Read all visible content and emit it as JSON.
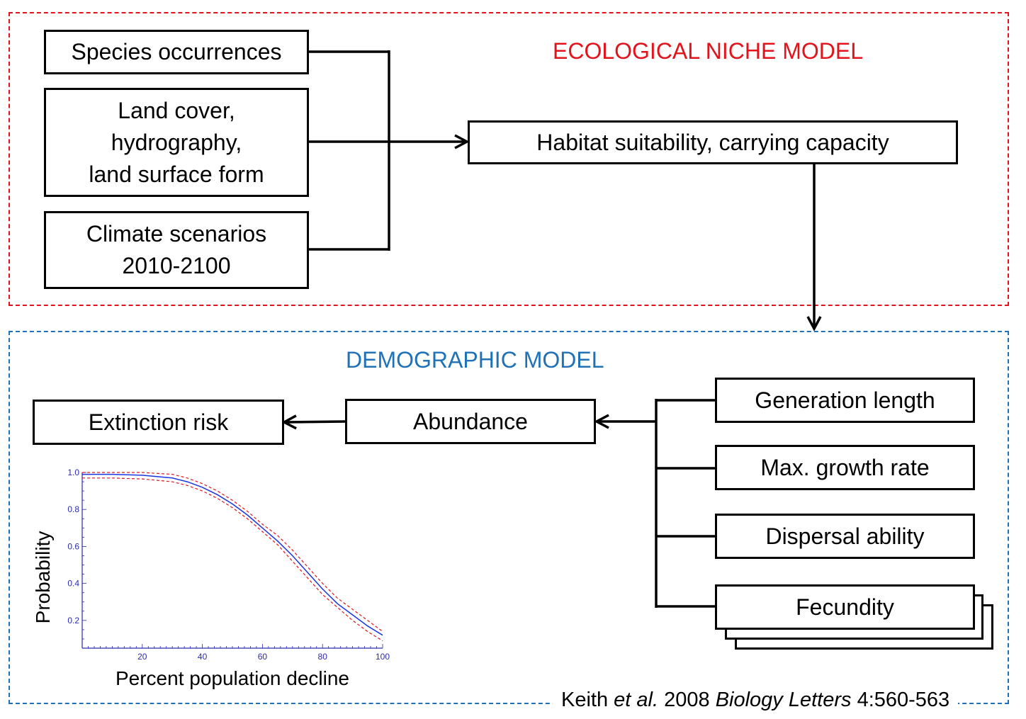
{
  "niche_panel": {
    "title": "ECOLOGICAL NICHE MODEL",
    "color": "#e3131b",
    "inputs": {
      "species": "Species occurrences",
      "land": "Land cover,\nhydrography,\nland surface form",
      "climate": "Climate scenarios\n2010-2100"
    },
    "output": "Habitat suitability, carrying capacity"
  },
  "demo_panel": {
    "title": "DEMOGRAPHIC MODEL",
    "color": "#1f72b8",
    "parameters": {
      "generation": "Generation length",
      "growth": "Max. growth rate",
      "dispersal": "Dispersal ability",
      "fecundity": "Fecundity"
    },
    "abundance": "Abundance",
    "extinction": "Extinction risk"
  },
  "citation": {
    "author": "Keith ",
    "etal": "et al.",
    "year": " 2008 ",
    "journal": "Biology Letters",
    "ref": " 4:560-563"
  },
  "chart_data": {
    "type": "line",
    "xlabel": "Percent population decline",
    "ylabel": "Probability",
    "xlim": [
      0,
      100
    ],
    "ylim": [
      0.05,
      1.0
    ],
    "x_ticks": [
      20,
      40,
      60,
      80,
      100
    ],
    "y_ticks": [
      0.2,
      0.4,
      0.6,
      0.8,
      1.0
    ],
    "y_tick_labels": [
      "0.2",
      "0.4",
      "0.6",
      "0.8",
      "1.0"
    ],
    "x": [
      0,
      10,
      20,
      30,
      35,
      40,
      45,
      50,
      55,
      60,
      65,
      70,
      75,
      80,
      85,
      90,
      95,
      100
    ],
    "series": [
      {
        "color": "#1a35e0",
        "style": "solid",
        "values": [
          0.99,
          0.99,
          0.985,
          0.97,
          0.95,
          0.92,
          0.88,
          0.83,
          0.77,
          0.7,
          0.63,
          0.55,
          0.46,
          0.37,
          0.29,
          0.23,
          0.17,
          0.12
        ]
      },
      {
        "color": "#e3131b",
        "style": "dashed",
        "values": [
          1.0,
          1.0,
          1.0,
          0.99,
          0.97,
          0.94,
          0.9,
          0.85,
          0.79,
          0.72,
          0.66,
          0.58,
          0.49,
          0.4,
          0.32,
          0.26,
          0.2,
          0.14
        ]
      },
      {
        "color": "#e3131b",
        "style": "dashed",
        "values": [
          0.97,
          0.97,
          0.965,
          0.95,
          0.93,
          0.9,
          0.86,
          0.81,
          0.75,
          0.68,
          0.61,
          0.52,
          0.43,
          0.34,
          0.27,
          0.2,
          0.14,
          0.09
        ]
      }
    ]
  }
}
